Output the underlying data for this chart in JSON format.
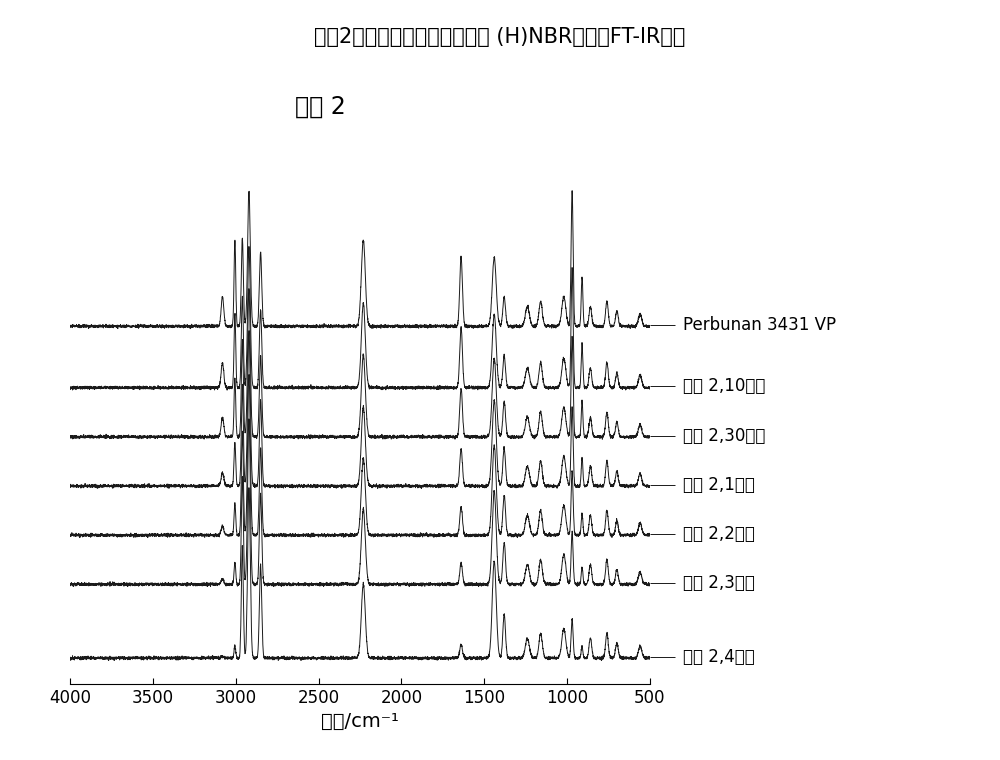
{
  "title": "实例2中在氢化前和氢化期间的 (H)NBR样品的FT-IR光谱",
  "subtitle": "实例 2",
  "xlabel": "波数/cm⁻¹",
  "xmin": 4000,
  "xmax": 500,
  "background_color": "#ffffff",
  "legend_labels": [
    "Perbunan 3431 VP",
    "实例 2,10分钟",
    "实例 2,30分钟",
    "实例 2,1小时",
    "实例 2,2小时",
    "实例 2,3小时",
    "实例 2,4小时"
  ],
  "offsets": [
    1.35,
    1.1,
    0.9,
    0.7,
    0.5,
    0.3,
    0.0
  ],
  "line_color": "#1a1a1a",
  "title_fontsize": 15,
  "subtitle_fontsize": 17,
  "xlabel_fontsize": 14,
  "tick_fontsize": 12,
  "label_fontsize": 12
}
